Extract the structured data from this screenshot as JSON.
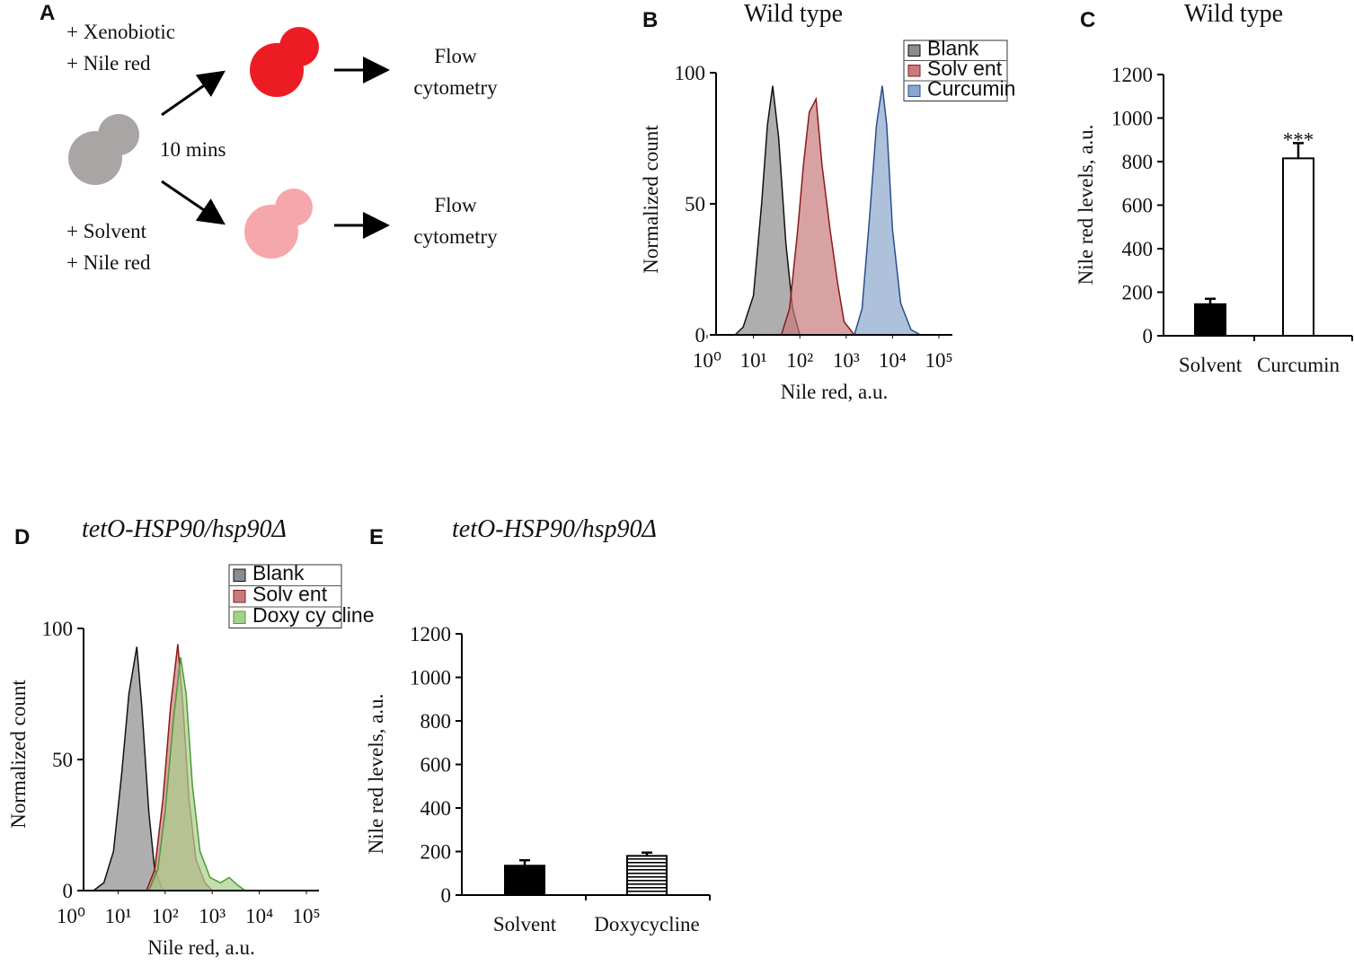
{
  "diagram": {
    "panel_label": "A",
    "top_reagents": [
      "+ Xenobiotic",
      "+ Nile red"
    ],
    "time": "10 mins",
    "bottom_reagents": [
      "+ Solvent",
      "+ Nile red"
    ],
    "readout_top": [
      "Flow",
      "cytometry"
    ],
    "readout_bottom": [
      "Flow",
      "cytometry"
    ]
  },
  "chart_data": [
    {
      "type": "area",
      "panel_label": "B",
      "title": "Wild type",
      "x_label": "Nile red, a.u.",
      "y_label": "Normalized count",
      "log_x": true,
      "xlim": [
        1,
        100000
      ],
      "xticks": [
        {
          "value": 1,
          "label": "10⁰"
        },
        {
          "value": 10,
          "label": "10¹"
        },
        {
          "value": 100,
          "label": "10²"
        },
        {
          "value": 1000,
          "label": "10³"
        },
        {
          "value": 10000,
          "label": "10⁴"
        },
        {
          "value": 100000,
          "label": "10⁵"
        }
      ],
      "ylim": [
        0,
        100
      ],
      "yticks": [
        0,
        50,
        100
      ],
      "legend": "top-right",
      "series": [
        {
          "name": "Blank",
          "color": "#8c8c8c",
          "edgecolor": "#111111",
          "x": [
            4,
            6,
            10,
            15,
            20,
            26,
            35,
            50,
            70,
            100
          ],
          "values": [
            0,
            3,
            15,
            50,
            80,
            95,
            75,
            35,
            10,
            0
          ]
        },
        {
          "name": "Solv ent",
          "color": "#c97b7b",
          "edgecolor": "#8b1a1a",
          "x": [
            40,
            60,
            90,
            120,
            160,
            224,
            300,
            450,
            650,
            900,
            1500
          ],
          "values": [
            0,
            10,
            40,
            65,
            85,
            90,
            65,
            40,
            20,
            5,
            0
          ]
        },
        {
          "name": "Curcumin",
          "color": "#8aa6cc",
          "edgecolor": "#2a4f8a",
          "x": [
            1500,
            2200,
            3200,
            4500,
            6000,
            7500,
            10000,
            15000,
            25000,
            40000
          ],
          "values": [
            0,
            10,
            45,
            80,
            95,
            80,
            40,
            12,
            2,
            0
          ]
        }
      ]
    },
    {
      "type": "bar",
      "panel_label": "C",
      "title": "Wild type",
      "y_label": "Nile red levels, a.u.",
      "categories": [
        "Solvent",
        "Curcumin"
      ],
      "values": [
        145,
        815
      ],
      "errors": [
        25,
        70
      ],
      "colors": [
        "#000000",
        "#ffffff"
      ],
      "hatch": [
        null,
        null
      ],
      "annotation": "***",
      "ylim": [
        0,
        1200
      ],
      "yticks": [
        0,
        200,
        400,
        600,
        800,
        1000,
        1200
      ]
    },
    {
      "type": "area",
      "panel_label": "D",
      "title": "tetO-HSP90/hsp90Δ",
      "x_label": "Nile red, a.u.",
      "y_label": "Normalized count",
      "log_x": true,
      "xlim": [
        1,
        100000
      ],
      "xticks": [
        {
          "value": 1,
          "label": "10⁰"
        },
        {
          "value": 10,
          "label": "10¹"
        },
        {
          "value": 100,
          "label": "10²"
        },
        {
          "value": 1000,
          "label": "10³"
        },
        {
          "value": 10000,
          "label": "10⁴"
        },
        {
          "value": 100000,
          "label": "10⁵"
        }
      ],
      "ylim": [
        0,
        100
      ],
      "yticks": [
        0,
        50,
        100
      ],
      "legend": "top-right",
      "series": [
        {
          "name": "Blank",
          "color": "#8c8c8c",
          "edgecolor": "#111111",
          "x": [
            3,
            5,
            8,
            12,
            17,
            25,
            32,
            45,
            60,
            90
          ],
          "values": [
            0,
            3,
            15,
            45,
            75,
            93,
            70,
            30,
            8,
            0
          ]
        },
        {
          "name": "Solv ent",
          "color": "#c97b7b",
          "edgecolor": "#8b1a1a",
          "x": [
            40,
            60,
            90,
            130,
            186,
            240,
            320,
            450,
            700,
            1000
          ],
          "values": [
            0,
            8,
            35,
            70,
            94,
            70,
            35,
            12,
            3,
            0
          ]
        },
        {
          "name": "Doxy cy cline",
          "color": "#a8d08d",
          "edgecolor": "#4f9a35",
          "x": [
            45,
            70,
            100,
            150,
            213,
            280,
            380,
            550,
            900,
            1500,
            2300,
            3500,
            5000
          ],
          "values": [
            0,
            8,
            30,
            65,
            89,
            75,
            40,
            15,
            5,
            3,
            5,
            2,
            0
          ]
        }
      ]
    },
    {
      "type": "bar",
      "panel_label": "E",
      "title": "tetO-HSP90/hsp90Δ",
      "y_label": "Nile red levels, a.u.",
      "categories": [
        "Solvent",
        "Doxycycline"
      ],
      "values": [
        135,
        180
      ],
      "errors": [
        25,
        15
      ],
      "colors": [
        "#000000",
        "#ffffff"
      ],
      "hatch": [
        null,
        "horizontal"
      ],
      "ylim": [
        0,
        1200
      ],
      "yticks": [
        0,
        200,
        400,
        600,
        800,
        1000,
        1200
      ]
    }
  ]
}
